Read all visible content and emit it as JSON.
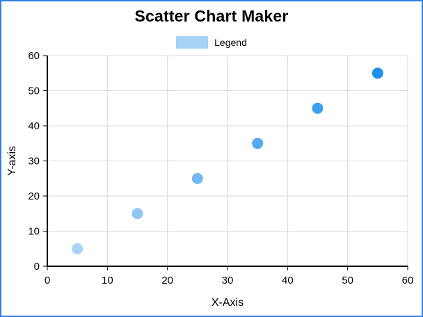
{
  "window": {
    "border_color": "#2E7FE6",
    "background": "#FFFFFF"
  },
  "header": {
    "title": "Scatter Chart Maker"
  },
  "legend": {
    "label": "Legend",
    "swatch_color": "#A8D3F5",
    "position": "top-center"
  },
  "chart_data": {
    "type": "scatter",
    "title": "Scatter Chart Maker",
    "xlabel": "X-Axis",
    "ylabel": "Y-axis",
    "xlim": [
      0,
      60
    ],
    "ylim": [
      0,
      60
    ],
    "x_ticks": [
      0,
      10,
      20,
      30,
      40,
      50,
      60
    ],
    "y_ticks": [
      0,
      10,
      20,
      30,
      40,
      50,
      60
    ],
    "grid": true,
    "grid_color": "#D9D9D9",
    "axis_color": "#000000",
    "point_radius": 8,
    "legend_entries": [
      "Legend"
    ],
    "points": [
      {
        "x": 5,
        "y": 5,
        "color": "#A9D4F6"
      },
      {
        "x": 15,
        "y": 15,
        "color": "#8FC6F4"
      },
      {
        "x": 25,
        "y": 25,
        "color": "#75B9F2"
      },
      {
        "x": 35,
        "y": 35,
        "color": "#55AAEF"
      },
      {
        "x": 45,
        "y": 45,
        "color": "#3D9FEE"
      },
      {
        "x": 55,
        "y": 55,
        "color": "#1E90EF"
      }
    ]
  }
}
